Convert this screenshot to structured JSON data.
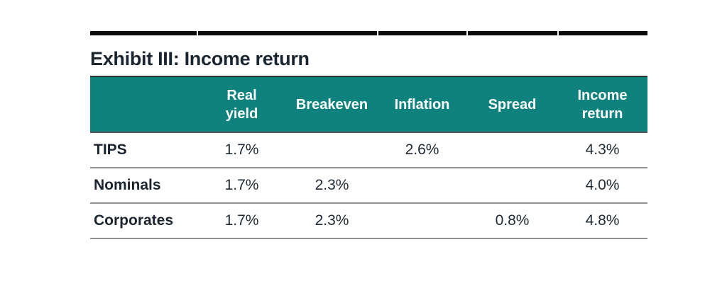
{
  "colors": {
    "teal": "#0f827d",
    "ink": "#1f2a35",
    "title_ink": "#1b2530",
    "rule_black": "#0a0a0a",
    "sep_gray": "#8d9296",
    "header_text": "#ffffff",
    "page_bg": "#ffffff"
  },
  "exhibit": {
    "title": "Exhibit III: Income return"
  },
  "table": {
    "columns": [
      {
        "key": "asset",
        "label": ""
      },
      {
        "key": "real_yield",
        "label": "Real\nyield"
      },
      {
        "key": "breakeven",
        "label": "Breakeven"
      },
      {
        "key": "inflation",
        "label": "Inflation"
      },
      {
        "key": "spread",
        "label": "Spread"
      },
      {
        "key": "income_return",
        "label": "Income\nreturn"
      }
    ],
    "rows": [
      {
        "label": "TIPS",
        "values": [
          "1.7%",
          "",
          "2.6%",
          "",
          "4.3%"
        ]
      },
      {
        "label": "Nominals",
        "values": [
          "1.7%",
          "2.3%",
          "",
          "",
          "4.0%"
        ]
      },
      {
        "label": "Corporates",
        "values": [
          "1.7%",
          "2.3%",
          "",
          "0.8%",
          "4.8%"
        ]
      }
    ]
  },
  "chart_data": {
    "type": "table",
    "title": "Exhibit III: Income return",
    "columns": [
      "",
      "Real yield",
      "Breakeven",
      "Inflation",
      "Spread",
      "Income return"
    ],
    "rows": [
      [
        "TIPS",
        "1.7%",
        "",
        "2.6%",
        "",
        "4.3%"
      ],
      [
        "Nominals",
        "1.7%",
        "2.3%",
        "",
        "",
        "4.0%"
      ],
      [
        "Corporates",
        "1.7%",
        "2.3%",
        "",
        "0.8%",
        "4.8%"
      ]
    ]
  }
}
